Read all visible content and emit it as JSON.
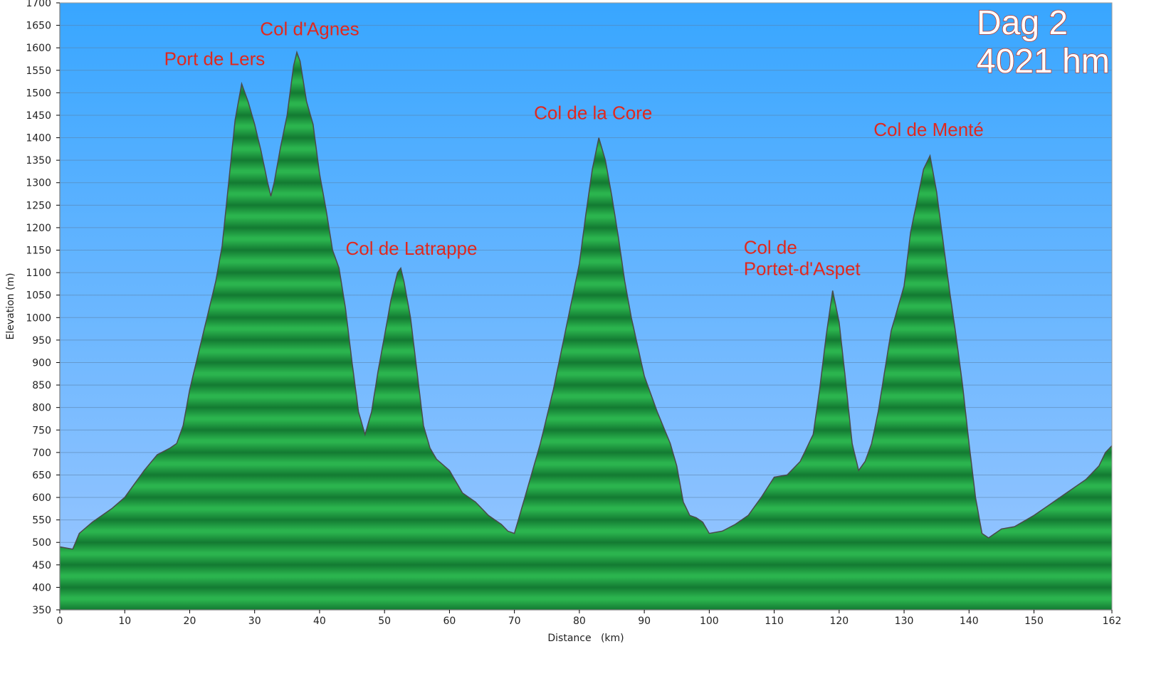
{
  "chart_data": {
    "type": "area",
    "title": "Dag 2",
    "subtitle": "4021 hm",
    "xlabel": "Distance   (km)",
    "ylabel": "Elevation (m)",
    "xlim": [
      0,
      162
    ],
    "ylim": [
      350,
      1700
    ],
    "x_ticks": [
      "0",
      "10",
      "20",
      "30",
      "40",
      "50",
      "60",
      "70",
      "80",
      "90",
      "100",
      "110",
      "120",
      "130",
      "140",
      "150",
      "162"
    ],
    "y_ticks": [
      "350",
      "400",
      "450",
      "500",
      "550",
      "600",
      "650",
      "700",
      "750",
      "800",
      "850",
      "900",
      "950",
      "1000",
      "1050",
      "1100",
      "1150",
      "1200",
      "1250",
      "1300",
      "1350",
      "1400",
      "1450",
      "1500",
      "1550",
      "1600",
      "1650",
      "1700"
    ],
    "grid": true,
    "colors": {
      "sky_top": "#38a6ff",
      "sky_bottom": "#9cc7ff",
      "fill_light": "#2bb44e",
      "fill_dark": "#137a32",
      "outline": "#4a4a4a",
      "label": "#e0281e"
    },
    "series": [
      {
        "points": [
          [
            0,
            490
          ],
          [
            2,
            485
          ],
          [
            3,
            520
          ],
          [
            5,
            545
          ],
          [
            8,
            575
          ],
          [
            10,
            600
          ],
          [
            13,
            660
          ],
          [
            15,
            695
          ],
          [
            17,
            710
          ],
          [
            18,
            720
          ],
          [
            19,
            760
          ],
          [
            20,
            840
          ],
          [
            22,
            960
          ],
          [
            24,
            1080
          ],
          [
            25,
            1160
          ],
          [
            26,
            1300
          ],
          [
            27,
            1440
          ],
          [
            28,
            1520
          ],
          [
            29,
            1480
          ],
          [
            30,
            1430
          ],
          [
            31,
            1370
          ],
          [
            32,
            1300
          ],
          [
            32.5,
            1270
          ],
          [
            33,
            1300
          ],
          [
            34,
            1380
          ],
          [
            35,
            1450
          ],
          [
            36,
            1560
          ],
          [
            36.5,
            1590
          ],
          [
            37,
            1570
          ],
          [
            38,
            1480
          ],
          [
            39,
            1430
          ],
          [
            40,
            1320
          ],
          [
            41,
            1240
          ],
          [
            42,
            1150
          ],
          [
            43,
            1110
          ],
          [
            44,
            1020
          ],
          [
            45,
            900
          ],
          [
            46,
            790
          ],
          [
            47,
            740
          ],
          [
            48,
            790
          ],
          [
            49,
            880
          ],
          [
            50,
            960
          ],
          [
            51,
            1040
          ],
          [
            52,
            1100
          ],
          [
            52.5,
            1110
          ],
          [
            53,
            1080
          ],
          [
            54,
            1000
          ],
          [
            55,
            880
          ],
          [
            56,
            760
          ],
          [
            57,
            710
          ],
          [
            58,
            685
          ],
          [
            60,
            660
          ],
          [
            62,
            610
          ],
          [
            64,
            590
          ],
          [
            66,
            560
          ],
          [
            68,
            540
          ],
          [
            69,
            525
          ],
          [
            70,
            520
          ],
          [
            71,
            570
          ],
          [
            72,
            620
          ],
          [
            74,
            720
          ],
          [
            76,
            840
          ],
          [
            78,
            980
          ],
          [
            80,
            1120
          ],
          [
            81,
            1230
          ],
          [
            82,
            1330
          ],
          [
            83,
            1400
          ],
          [
            84,
            1350
          ],
          [
            85,
            1270
          ],
          [
            86,
            1180
          ],
          [
            87,
            1080
          ],
          [
            88,
            1000
          ],
          [
            90,
            870
          ],
          [
            92,
            790
          ],
          [
            94,
            720
          ],
          [
            95,
            670
          ],
          [
            96,
            590
          ],
          [
            97,
            560
          ],
          [
            98,
            555
          ],
          [
            99,
            545
          ],
          [
            100,
            520
          ],
          [
            102,
            525
          ],
          [
            104,
            540
          ],
          [
            106,
            560
          ],
          [
            108,
            600
          ],
          [
            110,
            645
          ],
          [
            112,
            650
          ],
          [
            114,
            680
          ],
          [
            116,
            740
          ],
          [
            117,
            840
          ],
          [
            118,
            960
          ],
          [
            119,
            1060
          ],
          [
            120,
            990
          ],
          [
            121,
            860
          ],
          [
            122,
            720
          ],
          [
            123,
            660
          ],
          [
            124,
            680
          ],
          [
            125,
            720
          ],
          [
            126,
            790
          ],
          [
            127,
            880
          ],
          [
            128,
            970
          ],
          [
            130,
            1070
          ],
          [
            131,
            1190
          ],
          [
            132,
            1260
          ],
          [
            133,
            1330
          ],
          [
            134,
            1360
          ],
          [
            135,
            1280
          ],
          [
            136,
            1170
          ],
          [
            137,
            1060
          ],
          [
            138,
            960
          ],
          [
            139,
            850
          ],
          [
            140,
            720
          ],
          [
            141,
            600
          ],
          [
            142,
            520
          ],
          [
            143,
            510
          ],
          [
            145,
            530
          ],
          [
            147,
            535
          ],
          [
            150,
            560
          ],
          [
            152,
            580
          ],
          [
            154,
            600
          ],
          [
            156,
            620
          ],
          [
            158,
            640
          ],
          [
            160,
            670
          ],
          [
            161,
            700
          ],
          [
            162,
            715
          ]
        ]
      }
    ],
    "annotations": [
      {
        "text": "Port de Lers",
        "x": 28,
        "y": 1520
      },
      {
        "text": "Col d'Agnes",
        "x": 36.5,
        "y": 1590
      },
      {
        "text": "Col de Latrappe",
        "x": 52.5,
        "y": 1110
      },
      {
        "text": "Col de la Core",
        "x": 83,
        "y": 1400
      },
      {
        "text": "Col de\nPortet-d'Aspet",
        "x": 119,
        "y": 1060
      },
      {
        "text": "Col de Menté",
        "x": 134,
        "y": 1360
      }
    ]
  }
}
